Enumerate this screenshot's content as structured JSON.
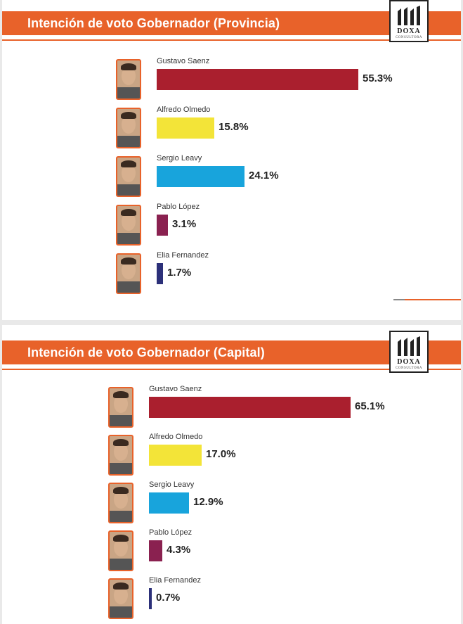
{
  "chart_data": [
    {
      "type": "bar",
      "title": "Intención de voto Gobernador (Provincia)",
      "categories": [
        "Gustavo Saenz",
        "Alfredo Olmedo",
        "Sergio Leavy",
        "Pablo López",
        "Elia Fernandez"
      ],
      "values": [
        55.3,
        15.8,
        24.1,
        3.1,
        1.7
      ],
      "labels": [
        "55.3%",
        "15.8%",
        "24.1%",
        "3.1%",
        "1.7%"
      ],
      "colors": [
        "#aa1f2e",
        "#f3e438",
        "#18a4dc",
        "#8a2150",
        "#2c3079"
      ],
      "orientation": "horizontal"
    },
    {
      "type": "bar",
      "title": "Intención de voto Gobernador (Capital)",
      "categories": [
        "Gustavo Saenz",
        "Alfredo Olmedo",
        "Sergio Leavy",
        "Pablo López",
        "Elia Fernandez"
      ],
      "values": [
        65.1,
        17.0,
        12.9,
        4.3,
        0.7
      ],
      "labels": [
        "65.1%",
        "17.0%",
        "12.9%",
        "4.3%",
        "0.7%"
      ],
      "colors": [
        "#aa1f2e",
        "#f3e438",
        "#18a4dc",
        "#8a2150",
        "#2c3079"
      ],
      "orientation": "horizontal"
    }
  ],
  "logo": {
    "name": "DOXA",
    "subtitle": "CONSULTORA"
  },
  "icons": [
    "candidate-photo-icon",
    "doxa-logo-icon"
  ]
}
